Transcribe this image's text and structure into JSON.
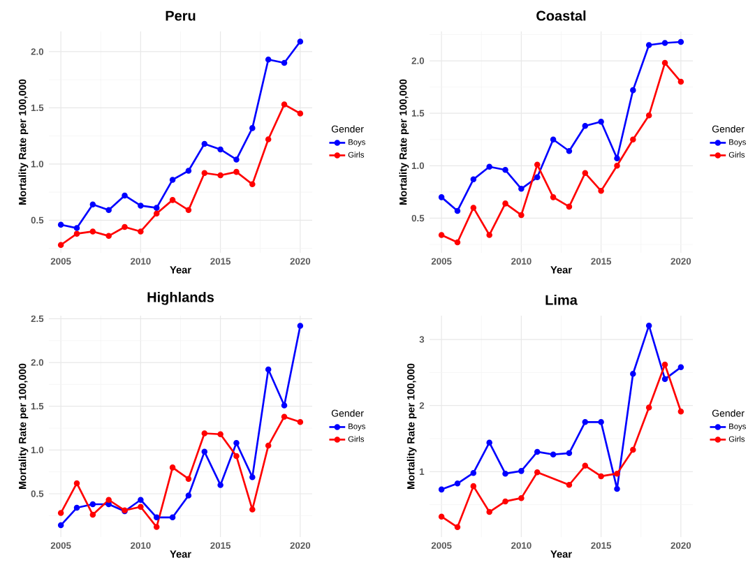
{
  "chart_data": [
    {
      "type": "line",
      "title": "Peru",
      "xlabel": "Year",
      "ylabel": "Mortality Rate per 100,000",
      "legend_title": "Gender",
      "legend": "right",
      "grid": true,
      "marker": "circle",
      "line_style": "solid",
      "x": [
        2005,
        2006,
        2007,
        2008,
        2009,
        2010,
        2011,
        2012,
        2013,
        2014,
        2015,
        2016,
        2017,
        2018,
        2019,
        2020
      ],
      "xlim": [
        2004.25,
        2020.75
      ],
      "ylim": [
        0.21,
        2.18
      ],
      "xticks": [
        2005,
        2010,
        2015,
        2020
      ],
      "yticks": [
        {
          "value": 0.5,
          "label": "0.5"
        },
        {
          "value": 1,
          "label": "1.0"
        },
        {
          "value": 1.5,
          "label": "1.5"
        },
        {
          "value": 2,
          "label": "2.0"
        }
      ],
      "series": [
        {
          "name": "Boys",
          "color": "#0000ff",
          "values": [
            0.46,
            0.43,
            0.64,
            0.59,
            0.72,
            0.63,
            0.61,
            0.86,
            0.94,
            1.18,
            1.13,
            1.04,
            1.32,
            1.93,
            1.9,
            2.09
          ]
        },
        {
          "name": "Girls",
          "color": "#ff0000",
          "values": [
            0.28,
            0.38,
            0.4,
            0.36,
            0.44,
            0.4,
            0.56,
            0.68,
            0.59,
            0.92,
            0.9,
            0.93,
            0.82,
            1.22,
            1.53,
            1.45
          ]
        }
      ]
    },
    {
      "type": "line",
      "title": "Coastal",
      "xlabel": "Year",
      "ylabel": "Mortality Rate per 100,000",
      "legend_title": "Gender",
      "legend": "right",
      "grid": true,
      "marker": "circle",
      "line_style": "solid",
      "x": [
        2005,
        2006,
        2007,
        2008,
        2009,
        2010,
        2011,
        2012,
        2013,
        2014,
        2015,
        2016,
        2017,
        2018,
        2019,
        2020
      ],
      "xlim": [
        2004.25,
        2020.75
      ],
      "ylim": [
        0.17,
        2.28
      ],
      "xticks": [
        2005,
        2010,
        2015,
        2020
      ],
      "yticks": [
        {
          "value": 0.5,
          "label": "0.5"
        },
        {
          "value": 1,
          "label": "1.0"
        },
        {
          "value": 1.5,
          "label": "1.5"
        },
        {
          "value": 2,
          "label": "2.0"
        }
      ],
      "series": [
        {
          "name": "Boys",
          "color": "#0000ff",
          "values": [
            0.7,
            0.57,
            0.87,
            0.99,
            0.96,
            0.78,
            0.89,
            1.25,
            1.14,
            1.38,
            1.42,
            1.07,
            1.72,
            2.15,
            2.17,
            2.18
          ]
        },
        {
          "name": "Girls",
          "color": "#ff0000",
          "values": [
            0.34,
            0.27,
            0.6,
            0.34,
            0.64,
            0.53,
            1.01,
            0.7,
            0.61,
            0.93,
            0.76,
            1.0,
            1.25,
            1.48,
            1.98,
            1.8
          ]
        }
      ]
    },
    {
      "type": "line",
      "title": "Highlands",
      "xlabel": "Year",
      "ylabel": "Mortality Rate per 100,000",
      "legend_title": "Gender",
      "legend": "right",
      "grid": true,
      "marker": "circle",
      "line_style": "solid",
      "x": [
        2005,
        2006,
        2007,
        2008,
        2009,
        2010,
        2011,
        2012,
        2013,
        2014,
        2015,
        2016,
        2017,
        2018,
        2019,
        2020
      ],
      "xlim": [
        2004.25,
        2020.75
      ],
      "ylim": [
        0.005,
        2.535
      ],
      "xticks": [
        2005,
        2010,
        2015,
        2020
      ],
      "yticks": [
        {
          "value": 0.5,
          "label": "0.5"
        },
        {
          "value": 1,
          "label": "1.0"
        },
        {
          "value": 1.5,
          "label": "1.5"
        },
        {
          "value": 2,
          "label": "2.0"
        },
        {
          "value": 2.5,
          "label": "2.5"
        }
      ],
      "series": [
        {
          "name": "Boys",
          "color": "#0000ff",
          "values": [
            0.14,
            0.34,
            0.38,
            0.38,
            0.3,
            0.43,
            0.23,
            0.23,
            0.48,
            0.98,
            0.6,
            1.08,
            0.69,
            1.92,
            1.51,
            2.42
          ]
        },
        {
          "name": "Girls",
          "color": "#ff0000",
          "values": [
            0.28,
            0.62,
            0.26,
            0.43,
            0.31,
            0.35,
            0.12,
            0.8,
            0.67,
            1.19,
            1.18,
            0.93,
            0.32,
            1.05,
            1.38,
            1.32
          ]
        }
      ]
    },
    {
      "type": "line",
      "title": "Lima",
      "xlabel": "Year",
      "ylabel": "Mortality Rate per 100,000",
      "legend_title": "Gender",
      "legend": "right",
      "grid": true,
      "marker": "circle",
      "line_style": "solid",
      "x": [
        2005,
        2006,
        2007,
        2008,
        2009,
        2010,
        2011,
        2012,
        2013,
        2014,
        2015,
        2016,
        2017,
        2018,
        2019,
        2020
      ],
      "xlim": [
        2004.25,
        2020.75
      ],
      "ylim": [
        0.01,
        3.36
      ],
      "xticks": [
        2005,
        2010,
        2015,
        2020
      ],
      "yticks": [
        1,
        2,
        3
      ],
      "series": [
        {
          "name": "Boys",
          "color": "#0000ff",
          "values": [
            0.73,
            0.82,
            0.98,
            1.44,
            0.97,
            1.01,
            1.3,
            1.26,
            1.28,
            1.75,
            1.75,
            0.74,
            2.48,
            3.21,
            2.4,
            2.58
          ]
        },
        {
          "name": "Girls",
          "color": "#ff0000",
          "x": [
            2005,
            2006,
            2007,
            2008,
            2009,
            2010,
            2011,
            2013,
            2014,
            2015,
            2016,
            2017,
            2018,
            2019,
            2020
          ],
          "values": [
            0.32,
            0.16,
            0.78,
            0.39,
            0.55,
            0.6,
            0.99,
            0.8,
            1.09,
            0.93,
            0.97,
            1.33,
            1.97,
            2.62,
            1.91
          ]
        }
      ]
    }
  ]
}
